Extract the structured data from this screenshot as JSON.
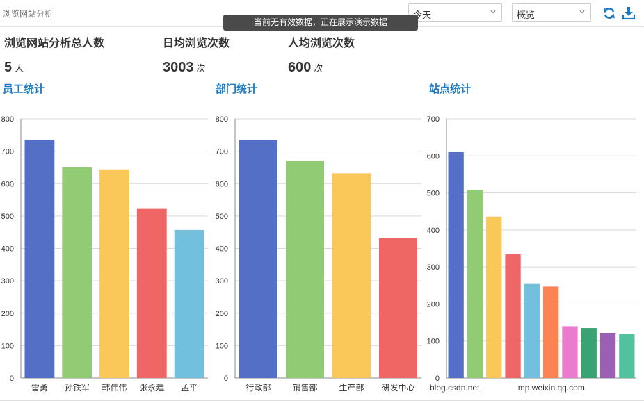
{
  "header": {
    "title": "浏览网站分析",
    "date_select": "今天",
    "view_select": "概览",
    "refresh_icon": "refresh-icon",
    "download_icon": "download-icon",
    "accent": "#1a7ac4"
  },
  "toast": {
    "message": "当前无有效数据，正在展示演示数据"
  },
  "stats": [
    {
      "label": "浏览网站分析总人数",
      "value": "5",
      "unit": "人"
    },
    {
      "label": "日均浏览次数",
      "value": "3003",
      "unit": "次"
    },
    {
      "label": "人均浏览次数",
      "value": "600",
      "unit": "次"
    }
  ],
  "sections": {
    "staff": "员工统计",
    "department": "部门统计",
    "site": "站点统计"
  },
  "chart_data": [
    {
      "type": "bar",
      "title": "员工统计",
      "categories": [
        "雷勇",
        "孙铁军",
        "韩伟伟",
        "张永建",
        "孟平"
      ],
      "values": [
        735,
        651,
        644,
        522,
        457
      ],
      "ylim": [
        0,
        800
      ],
      "yticks": [
        "0",
        "100",
        "200",
        "300",
        "400",
        "500",
        "600",
        "700",
        "800"
      ],
      "grid": true,
      "colors": [
        "#5470c6",
        "#91cc75",
        "#fac858",
        "#ee6666",
        "#73c0de"
      ]
    },
    {
      "type": "bar",
      "title": "部门统计",
      "categories": [
        "行政部",
        "销售部",
        "生产部",
        "研发中心"
      ],
      "values": [
        735,
        670,
        632,
        432
      ],
      "ylim": [
        0,
        800
      ],
      "yticks": [
        "0",
        "100",
        "200",
        "300",
        "400",
        "500",
        "600",
        "700",
        "800"
      ],
      "grid": true,
      "colors": [
        "#5470c6",
        "#91cc75",
        "#fac858",
        "#ee6666"
      ]
    },
    {
      "type": "bar",
      "title": "站点统计",
      "categories": [
        "blog.csdn.net",
        "",
        "mp.weixin.qq.com",
        "",
        "",
        "",
        "",
        "",
        "",
        ""
      ],
      "values": [
        610,
        508,
        436,
        334,
        254,
        247,
        140,
        135,
        122,
        120
      ],
      "ylim": [
        0,
        700
      ],
      "yticks": [
        "0",
        "100",
        "200",
        "300",
        "400",
        "500",
        "600",
        "700"
      ],
      "grid": true,
      "colors": [
        "#5470c6",
        "#91cc75",
        "#fac858",
        "#ee6666",
        "#73c0de",
        "#fc8452",
        "#e97ccc",
        "#3ba272",
        "#9a60b4",
        "#52c1a0"
      ]
    }
  ]
}
